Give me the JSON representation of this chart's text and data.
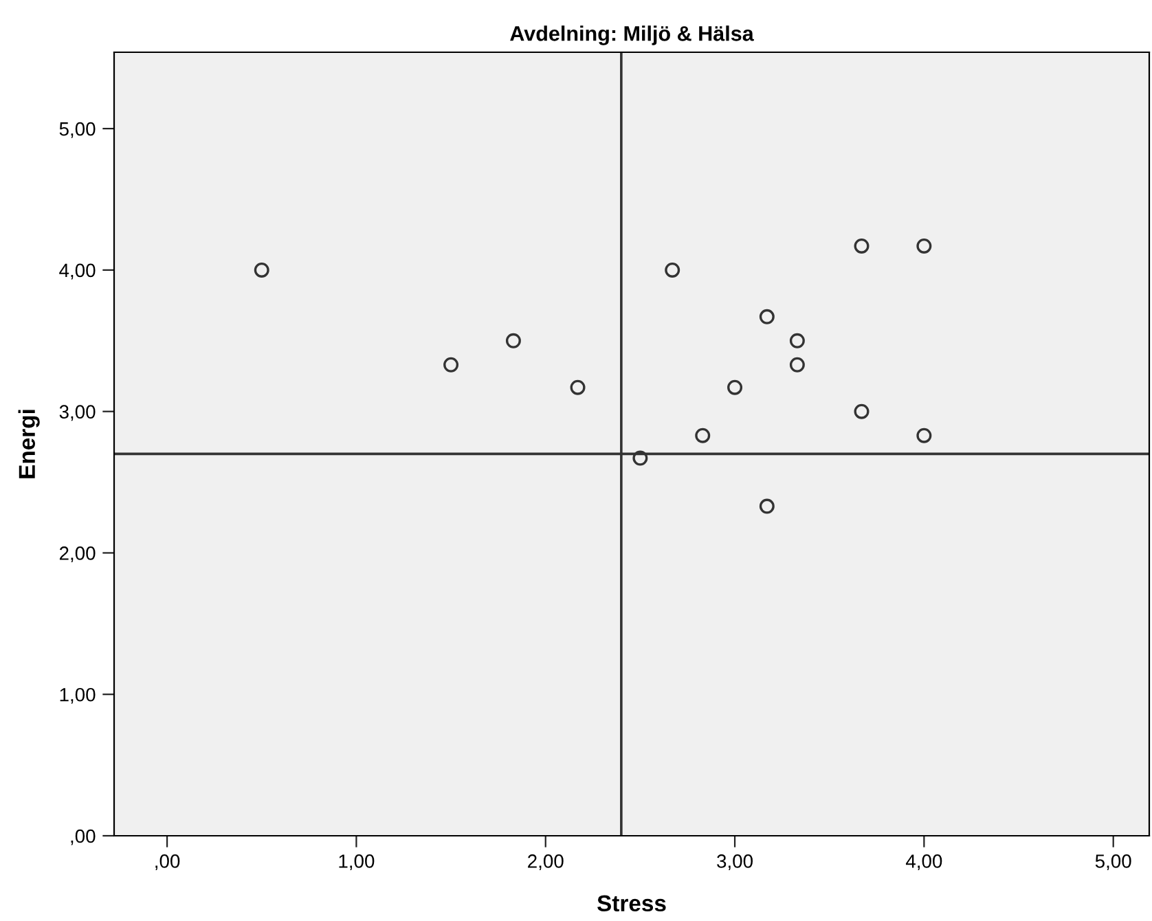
{
  "chart_data": {
    "type": "scatter",
    "title": "Avdelning: Miljö & Hälsa",
    "xlabel": "Stress",
    "ylabel": "Energi",
    "x": [
      0.5,
      1.5,
      1.83,
      2.17,
      2.5,
      2.67,
      2.83,
      3.0,
      3.17,
      3.33,
      3.33,
      3.17,
      3.67,
      4.0,
      3.67,
      4.0
    ],
    "series": [
      {
        "color": "#333333",
        "values": [
          4.0,
          3.33,
          3.5,
          3.17,
          2.67,
          4.0,
          2.83,
          3.17,
          3.67,
          3.5,
          3.33,
          2.33,
          4.17,
          4.17,
          3.0,
          2.83
        ]
      }
    ],
    "marker": "circle",
    "xlim": [
      -0.28,
      5.19
    ],
    "ylim": [
      0,
      5.54
    ],
    "xticks": [
      {
        "value": 0,
        "label": ",00"
      },
      {
        "value": 1,
        "label": "1,00"
      },
      {
        "value": 2,
        "label": "2,00"
      },
      {
        "value": 3,
        "label": "3,00"
      },
      {
        "value": 4,
        "label": "4,00"
      },
      {
        "value": 5,
        "label": "5,00"
      }
    ],
    "yticks": [
      {
        "value": 0,
        "label": ",00"
      },
      {
        "value": 1,
        "label": "1,00"
      },
      {
        "value": 2,
        "label": "2,00"
      },
      {
        "value": 3,
        "label": "3,00"
      },
      {
        "value": 4,
        "label": "4,00"
      },
      {
        "value": 5,
        "label": "5,00"
      }
    ],
    "ref_lines": [
      {
        "axis": "x",
        "value": 2.4,
        "color": "#333333"
      },
      {
        "axis": "y",
        "value": 2.7,
        "color": "#333333"
      }
    ],
    "grid": false,
    "legend": false
  }
}
